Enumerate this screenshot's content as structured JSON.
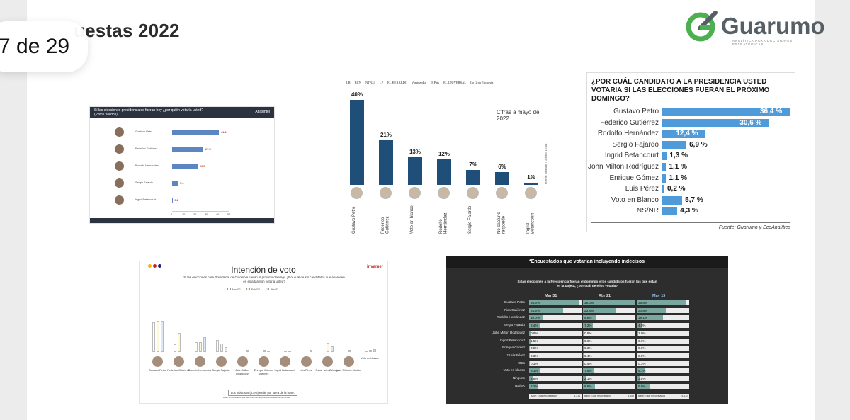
{
  "header": {
    "title_visible": "uestas 2022",
    "title_hidden": "Encuestas 2022",
    "slide_counter": "7 de 29",
    "logo_text": "Guarumo",
    "logo_tagline": "ANALÍTICA PARA DECISIONES ESTRATÉGICAS",
    "logo_color": "#4caf50"
  },
  "poll1": {
    "question": "Si las elecciones presidenciales fueran hoy ¿por quién votaría usted?",
    "question_note": "(Votos válidos)",
    "brand": "AtlasIntel",
    "bar_color": "#5b86c2",
    "rows": [
      {
        "name": "Gustavo Petro",
        "value": "41.2"
      },
      {
        "name": "Federico Gutiérrez",
        "value": "27.5"
      },
      {
        "name": "Rodolfo Hernández",
        "value": "22.5"
      },
      {
        "name": "Sergio Fajardo",
        "value": "5.1"
      },
      {
        "name": "Ingrid Betancourt",
        "value": "0.2"
      }
    ],
    "axis": [
      "0",
      "10",
      "20",
      "30",
      "40",
      "50"
    ]
  },
  "poll2": {
    "media_logos": [
      "LR",
      "RCN",
      "NTN24",
      "LP",
      "EL HERALDO",
      "Vanguardia",
      "El País",
      "EL UNIVERSAL",
      "La Gran Encuesta"
    ],
    "note": "Cifras a mayo de 2022",
    "source": "Fuente: YanHaas / Gráfico: LR-AL",
    "bar_color": "#1f4e79",
    "bars": [
      {
        "label": "Gustavo Petro",
        "pct": "40%",
        "value": 40
      },
      {
        "label": "Federico Gutiérrez",
        "pct": "21%",
        "value": 21
      },
      {
        "label": "Voto en blanco",
        "pct": "13%",
        "value": 13
      },
      {
        "label": "Rodolfo Hernández",
        "pct": "12%",
        "value": 12
      },
      {
        "label": "Sergio Fajardo",
        "pct": "7%",
        "value": 7
      },
      {
        "label": "No sabe/no responde",
        "pct": "6%",
        "value": 6
      },
      {
        "label": "Ingrid Betancourt",
        "pct": "1%",
        "value": 1
      }
    ]
  },
  "poll3": {
    "question": "¿POR CUÁL CANDIDATO A LA PRESIDENCIA USTED VOTARÍA SI LAS ELECCIONES FUERAN EL PRÓXIMO DOMINGO?",
    "source": "Fuente: Guarumo y EcoAnalítica",
    "bar_color": "#4f9bd9",
    "rows": [
      {
        "name": "Gustavo Petro",
        "pct": "36,4 %",
        "value": 36.4
      },
      {
        "name": "Federico Gutiérrez",
        "pct": "30,6 %",
        "value": 30.6
      },
      {
        "name": "Rodolfo Hernández",
        "pct": "12,4 %",
        "value": 12.4
      },
      {
        "name": "Sergio Fajardo",
        "pct": "6,9 %",
        "value": 6.9
      },
      {
        "name": "Ingrid Betancourt",
        "pct": "1,3 %",
        "value": 1.3
      },
      {
        "name": "John Milton Rodríguez",
        "pct": "1,1 %",
        "value": 1.1
      },
      {
        "name": "Enrique Gómez",
        "pct": "1,1 %",
        "value": 1.1
      },
      {
        "name": "Luis Pérez",
        "pct": "0,2 %",
        "value": 0.2
      },
      {
        "name": "Voto en Blanco",
        "pct": "5,7 %",
        "value": 5.7
      },
      {
        "name": "NS/NR",
        "pct": "4,3 %",
        "value": 4.3
      }
    ]
  },
  "poll4": {
    "title": "Intención de voto",
    "brand": "invamer",
    "question": "Si las elecciones para Presidente de Colombia fueran el próximo domingo ¿Por cuál de los candidatos que aparecen en esta tarjetón votaría usted?",
    "legend": [
      "Nov/21",
      "Feb/22",
      "Abr/22"
    ],
    "footnote": "Los indecisos (4.8%) están por fuera de la base.",
    "bottom_note": "Base: encuestados que definitivamente/ probablemente votarían (1488)",
    "colors": [
      "#ffffff",
      "#fff8d6",
      "#dbe9f7"
    ],
    "candidates": [
      {
        "name": "Gustavo Petro",
        "values": [
          42.1,
          43.6,
          43.6
        ]
      },
      {
        "name": "Federico Gutiérrez",
        "values": [
          11.4,
          26.7,
          0
        ]
      },
      {
        "name": "Rodolfo Hernández",
        "values": [
          13.9,
          13.9,
          20.9
        ]
      },
      {
        "name": "Sergio Fajardo",
        "values": [
          16.8,
          12.3,
          6.9
        ]
      },
      {
        "name": "John Milton Rodríguez",
        "values": [
          0,
          0,
          3.1
        ]
      },
      {
        "name": "Enrique Gómez Martínez",
        "values": [
          0,
          3.0,
          2.1
        ]
      },
      {
        "name": "Ingrid Betancourt",
        "values": [
          0,
          2.2,
          0.8
        ]
      },
      {
        "name": "Luis Pérez",
        "values": [
          0,
          0,
          3.0
        ]
      },
      {
        "name": "Óscar Iván Zuluaga",
        "values": [
          0,
          12.7,
          8.0
        ]
      },
      {
        "name": "Luis Gilberto Murillo",
        "values": [
          0,
          3.0,
          0
        ]
      },
      {
        "name": "Voto en blanco",
        "values": [
          2.1,
          3.0,
          3.7
        ]
      }
    ]
  },
  "poll5": {
    "header": "*Encuestados que votarían incluyendo indecisos",
    "question": "Si las elecciones a la Presidencia fueran el domingo y los candidatos fueran los que están en la tarjeta, ¿por cuál de ellos votaría?",
    "columns": [
      "Mar 31",
      "Abr 21",
      "May 19"
    ],
    "fill_color": "#7aa8a0",
    "rows": [
      {
        "name": "Gustavo Petro",
        "values": [
          "36.5%",
          "38.0%",
          "35.8%"
        ],
        "nums": [
          36.5,
          38.0,
          35.8
        ]
      },
      {
        "name": "Fico Gutiérrez",
        "values": [
          "24.5%",
          "23.8%",
          "20.8%"
        ],
        "nums": [
          24.5,
          23.8,
          20.8
        ]
      },
      {
        "name": "Rodolfo Hernández",
        "values": [
          "10.0%",
          "9.6%",
          "19.1%"
        ],
        "nums": [
          10.0,
          9.6,
          19.1
        ]
      },
      {
        "name": "Sergio Fajardo",
        "values": [
          "8.4%",
          "7.2%",
          "4.0%"
        ],
        "nums": [
          8.4,
          7.2,
          4.0
        ]
      },
      {
        "name": "John Milton Rodriguez",
        "values": [
          "0.9%",
          "0.9%",
          "1.0%"
        ],
        "nums": [
          0.9,
          0.9,
          1.0
        ]
      },
      {
        "name": "Ingrid Betancourt",
        "values": [
          "1.5%",
          "0.9%",
          "0.6%"
        ],
        "nums": [
          1.5,
          0.9,
          0.6
        ]
      },
      {
        "name": "Enrique Gómez",
        "values": [
          "0.5%",
          "0.3%",
          "0.3%"
        ],
        "nums": [
          0.5,
          0.3,
          0.3
        ]
      },
      {
        "name": "**Luis Pérez",
        "values": [
          "0.3%",
          "0.4%",
          "0.0%"
        ],
        "nums": [
          0.3,
          0.4,
          0.0
        ]
      },
      {
        "name": "Otro",
        "values": [
          "0.3%",
          "0.4%",
          "0.3%"
        ],
        "nums": [
          0.3,
          0.4,
          0.3
        ]
      },
      {
        "name": "Voto en blanco",
        "values": [
          "8.1%",
          "7.6%",
          "5.7%"
        ],
        "nums": [
          8.1,
          7.6,
          5.7
        ]
      },
      {
        "name": "Ninguno",
        "values": [
          "2.8%",
          "2.1%",
          "2.5%"
        ],
        "nums": [
          2.8,
          2.1,
          2.5
        ]
      },
      {
        "name": "NS/NR",
        "values": [
          "6.2%",
          "8.8%",
          "9.9%"
        ],
        "nums": [
          6.2,
          8.8,
          9.9
        ]
      }
    ],
    "base_label": "Base: Total encuestados",
    "base_values": [
      "4,316",
      "4,559",
      "4,412"
    ]
  }
}
